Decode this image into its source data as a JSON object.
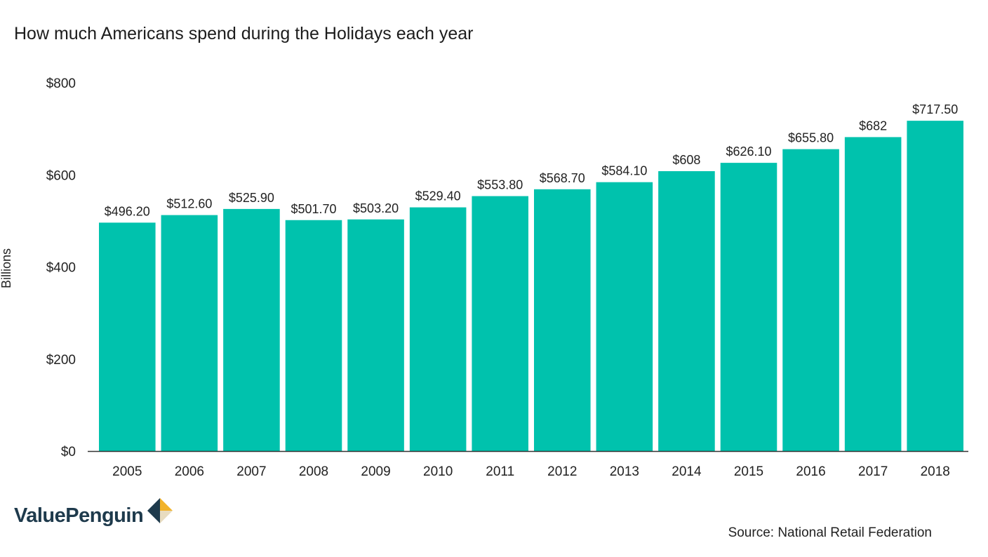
{
  "title": "How much Americans spend during the Holidays each year",
  "source": "Source: National Retail Federation",
  "logo": {
    "text": "ValuePenguin",
    "icon": "valuepenguin-diamond-icon"
  },
  "colors": {
    "bar": "#00c2ad",
    "axis": "#333333",
    "logo_text": "#1e3a4c",
    "logo_gold": "#f2b32a",
    "logo_navy": "#1e3a4c",
    "logo_cream": "#e8dcc0"
  },
  "chart_data": {
    "type": "bar",
    "title": "How much Americans spend during the Holidays each year",
    "xlabel": "",
    "ylabel": "Billions",
    "categories": [
      "2005",
      "2006",
      "2007",
      "2008",
      "2009",
      "2010",
      "2011",
      "2012",
      "2013",
      "2014",
      "2015",
      "2016",
      "2017",
      "2018"
    ],
    "values": [
      496.2,
      512.6,
      525.9,
      501.7,
      503.2,
      529.4,
      553.8,
      568.7,
      584.1,
      608,
      626.1,
      655.8,
      682,
      717.5
    ],
    "data_labels": [
      "$496.20",
      "$512.60",
      "$525.90",
      "$501.70",
      "$503.20",
      "$529.40",
      "$553.80",
      "$568.70",
      "$584.10",
      "$608",
      "$626.10",
      "$655.80",
      "$682",
      "$717.50"
    ],
    "ylim": [
      0,
      800
    ],
    "y_ticks": [
      0,
      200,
      400,
      600,
      800
    ],
    "y_tick_labels": [
      "$0",
      "$200",
      "$400",
      "$600",
      "$800"
    ],
    "grid": false,
    "legend": "none"
  }
}
